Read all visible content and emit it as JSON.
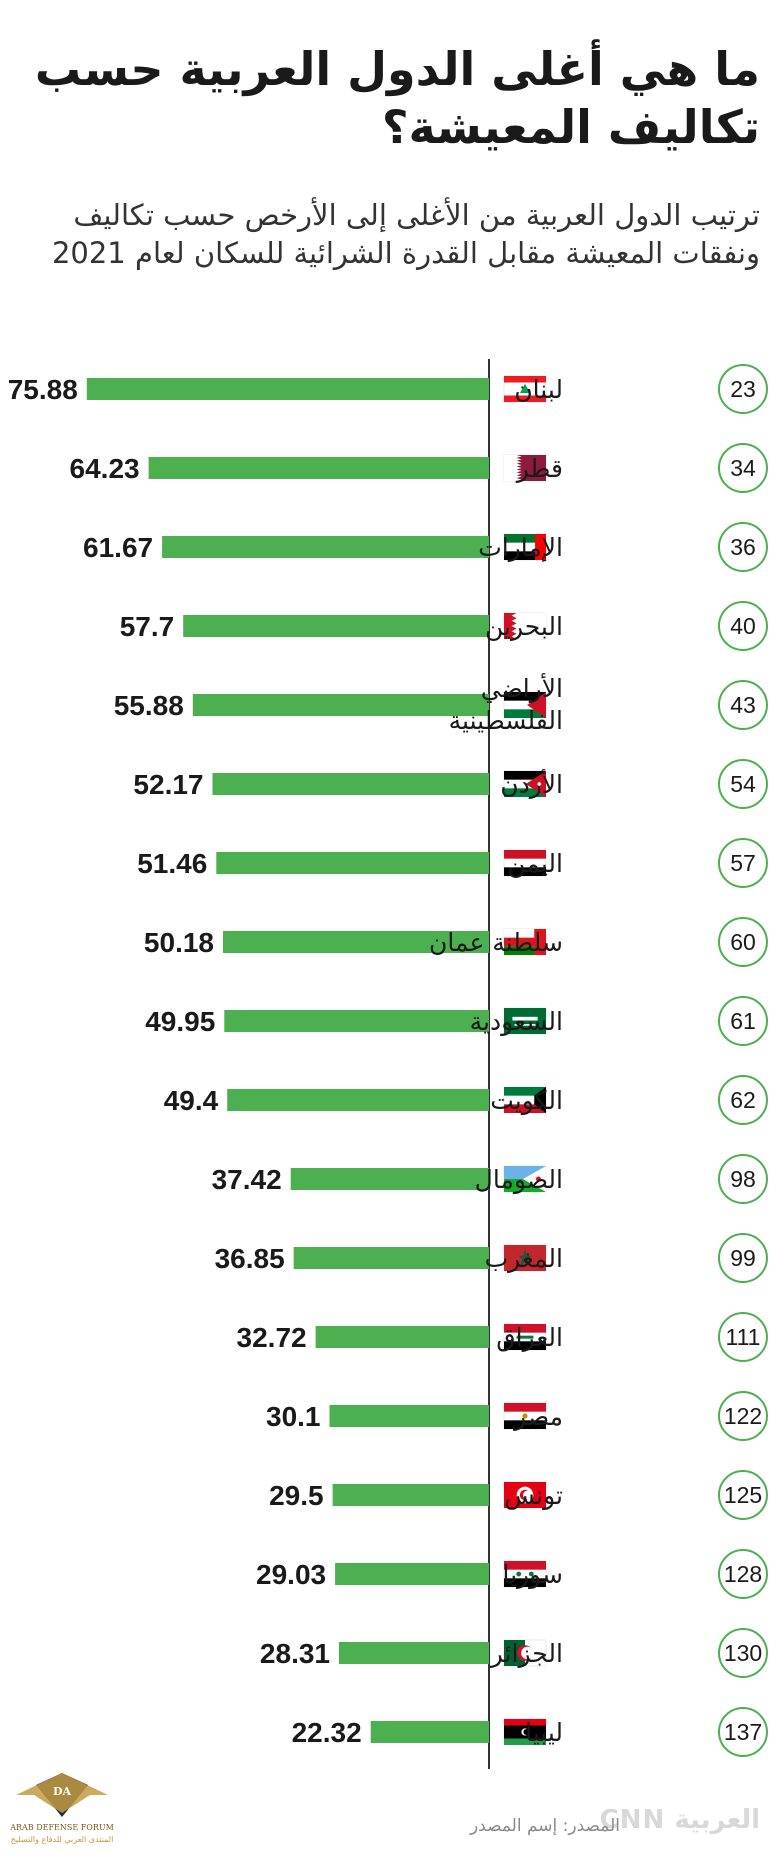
{
  "header": {
    "title": "ما هي أغلى الدول العربية حسب تكاليف المعيشة؟",
    "subtitle": "ترتيب الدول العربية من الأغلى إلى الأرخص حسب تكاليف ونفقات المعيشة مقابل القدرة الشرائية للسكان لعام 2021"
  },
  "footer": {
    "source": "المصدر: إسم المصدر",
    "brand": "العربية CNN",
    "forum_logo_text": "ARAB DEFENSE FORUM",
    "forum_logo_arabic": "المنتدى العربي للدفاع والتسليح",
    "forum_logo_initials": "DA"
  },
  "colors": {
    "bar": "#4caf50",
    "badge_border": "#4caf50",
    "axis": "#333333",
    "text": "#1a1a1a"
  },
  "chart_data": {
    "type": "bar",
    "orientation": "horizontal",
    "xlim": [
      0,
      80
    ],
    "categories": [
      "لبنان",
      "قطر",
      "الإمارات",
      "البحرين",
      "الأراضي الفلسطينية",
      "الأردن",
      "اليمن",
      "سلطنة عمان",
      "السعودية",
      "الكويت",
      "الصومال",
      "المغرب",
      "العراق",
      "مصر",
      "تونس",
      "سوريا",
      "الجزائر",
      "ليبيا"
    ],
    "values": [
      75.88,
      64.23,
      61.67,
      57.7,
      55.88,
      52.17,
      51.46,
      50.18,
      49.95,
      49.4,
      37.42,
      36.85,
      32.72,
      30.1,
      29.5,
      29.03,
      28.31,
      22.32
    ],
    "value_labels": [
      "75.88",
      "64.23",
      "61.67",
      "57.7",
      "55.88",
      "52.17",
      "51.46",
      "50.18",
      "49.95",
      "49.4",
      "37.42",
      "36.85",
      "32.72",
      "30.1",
      "29.5",
      "29.03",
      "28.31",
      "22.32"
    ],
    "ranks": [
      "23",
      "34",
      "36",
      "40",
      "43",
      "54",
      "57",
      "60",
      "61",
      "62",
      "98",
      "99",
      "111",
      "122",
      "125",
      "128",
      "130",
      "137"
    ],
    "flags": [
      "lebanon-flag",
      "qatar-flag",
      "uae-flag",
      "bahrain-flag",
      "palestine-flag",
      "jordan-flag",
      "yemen-flag",
      "oman-flag",
      "saudi-flag",
      "kuwait-flag",
      "djibouti-flag",
      "morocco-flag",
      "iraq-flag",
      "egypt-flag",
      "tunisia-flag",
      "syria-flag",
      "algeria-flag",
      "libya-flag"
    ],
    "grid": false,
    "legend": "none"
  }
}
